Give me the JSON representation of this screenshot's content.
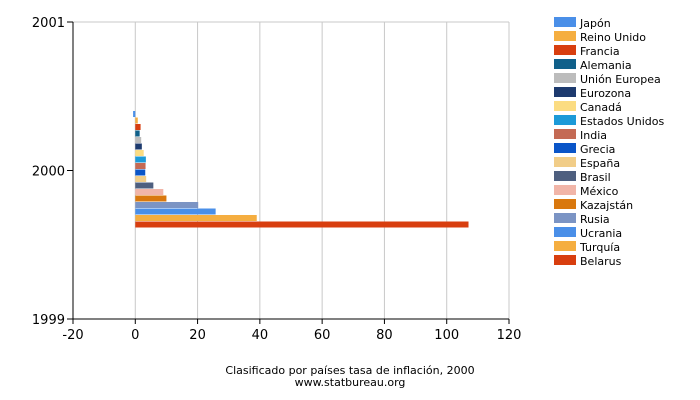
{
  "chart_data": {
    "type": "bar",
    "orientation": "horizontal",
    "title": "",
    "caption": "Clasificado por países tasa de inflación, 2000",
    "source": "www.statbureau.org",
    "xlim": [
      -20,
      120
    ],
    "x_ticks": [
      "-20",
      "0",
      "20",
      "40",
      "60",
      "80",
      "100",
      "120"
    ],
    "y_ticks": [
      "2001",
      "2000",
      "1999"
    ],
    "category": "2000",
    "grid": true,
    "legend_position": "right",
    "series": [
      {
        "name": "Japón",
        "value": -0.7,
        "color": "#4a8fe8"
      },
      {
        "name": "Reino Unido",
        "value": 0.8,
        "color": "#f5ae40"
      },
      {
        "name": "Francia",
        "value": 1.7,
        "color": "#d83e0f"
      },
      {
        "name": "Alemania",
        "value": 1.4,
        "color": "#10608a"
      },
      {
        "name": "Unión Europea",
        "value": 1.9,
        "color": "#bcbcbc"
      },
      {
        "name": "Eurozona",
        "value": 2.1,
        "color": "#1d3a6e"
      },
      {
        "name": "Canadá",
        "value": 2.7,
        "color": "#fbdc82"
      },
      {
        "name": "Estados Unidos",
        "value": 3.4,
        "color": "#1c9ad8"
      },
      {
        "name": "India",
        "value": 3.3,
        "color": "#c46a54"
      },
      {
        "name": "Grecia",
        "value": 3.2,
        "color": "#0a55c8"
      },
      {
        "name": "España",
        "value": 3.5,
        "color": "#f1cd88"
      },
      {
        "name": "Brasil",
        "value": 5.8,
        "color": "#4e5f7f"
      },
      {
        "name": "México",
        "value": 9.0,
        "color": "#f1b5a8"
      },
      {
        "name": "Kazajstán",
        "value": 10.0,
        "color": "#d9780e"
      },
      {
        "name": "Rusia",
        "value": 20.2,
        "color": "#7b94c4"
      },
      {
        "name": "Ucrania",
        "value": 25.8,
        "color": "#4a8fe8"
      },
      {
        "name": "Turquía",
        "value": 39.0,
        "color": "#f5ae40"
      },
      {
        "name": "Belarus",
        "value": 107.0,
        "color": "#d83e0f"
      }
    ]
  }
}
